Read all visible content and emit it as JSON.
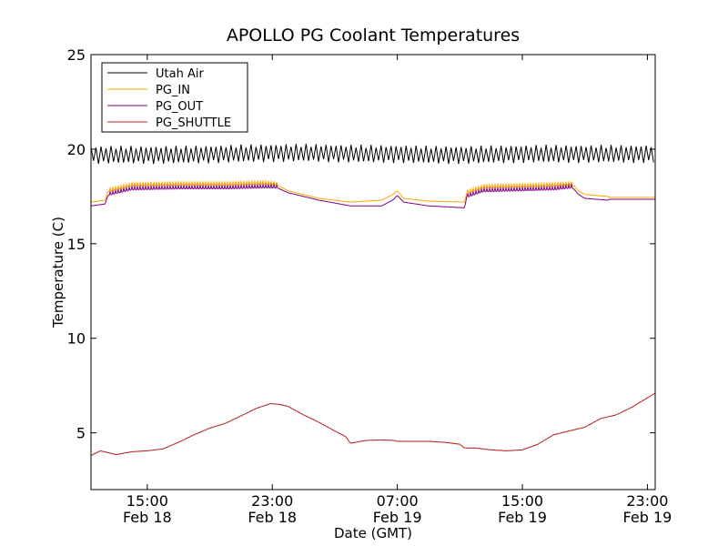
{
  "chart_data": {
    "type": "line",
    "title": "APOLLO PG Coolant Temperatures",
    "xlabel": "Date (GMT)",
    "ylabel": "Temperature (C)",
    "x_unit": "hours since 00:00 Feb 18 (GMT)",
    "xlim": [
      11.4,
      47.5
    ],
    "ylim": [
      2,
      25
    ],
    "yticks": [
      5,
      10,
      15,
      20,
      25
    ],
    "xticks": [
      {
        "x": 15,
        "time": "15:00",
        "date": "Feb 18"
      },
      {
        "x": 23,
        "time": "23:00",
        "date": "Feb 18"
      },
      {
        "x": 31,
        "time": "07:00",
        "date": "Feb 19"
      },
      {
        "x": 39,
        "time": "15:00",
        "date": "Feb 19"
      },
      {
        "x": 47,
        "time": "23:00",
        "date": "Feb 19"
      }
    ],
    "grid": false,
    "legend_position": "top-left",
    "series": [
      {
        "name": "Utah Air",
        "color": "#000000",
        "style": "oscillating",
        "oscillation_amplitude": 0.4,
        "oscillation_period_hours": 0.32,
        "x": [
          11.4,
          14,
          17,
          20,
          23,
          26,
          29,
          31,
          33,
          36,
          39,
          42,
          45,
          47.5
        ],
        "values": [
          19.7,
          19.7,
          19.7,
          19.75,
          19.8,
          19.8,
          19.75,
          19.75,
          19.7,
          19.7,
          19.75,
          19.75,
          19.75,
          19.75
        ]
      },
      {
        "name": "PG_IN",
        "color": "#ffa500",
        "x": [
          11.4,
          12.3,
          12.5,
          14,
          17,
          20,
          22.5,
          23.2,
          24,
          26,
          28,
          30,
          30.7,
          31,
          31.4,
          33,
          35.3,
          35.45,
          36.5,
          39,
          41,
          42.2,
          42.6,
          43,
          44.5,
          44.55,
          47.5
        ],
        "values": [
          17.2,
          17.3,
          17.8,
          18.1,
          18.15,
          18.15,
          18.2,
          18.15,
          17.8,
          17.4,
          17.2,
          17.3,
          17.6,
          17.8,
          17.4,
          17.25,
          17.2,
          17.7,
          18.0,
          18.05,
          18.1,
          18.15,
          17.8,
          17.6,
          17.5,
          17.45,
          17.45
        ]
      },
      {
        "name": "PG_OUT",
        "color": "#800080",
        "x": [
          11.4,
          12.3,
          12.5,
          14,
          17,
          20,
          22.5,
          23.2,
          24,
          26,
          28,
          30,
          30.7,
          31,
          31.4,
          33,
          35.3,
          35.45,
          36.5,
          39,
          41,
          42.2,
          42.6,
          43,
          44.5,
          44.55,
          47.5
        ],
        "values": [
          17.0,
          17.1,
          17.6,
          17.9,
          17.95,
          17.95,
          18.0,
          18.0,
          17.7,
          17.3,
          17.0,
          17.0,
          17.3,
          17.55,
          17.2,
          17.0,
          16.9,
          17.5,
          17.8,
          17.85,
          17.9,
          18.0,
          17.6,
          17.4,
          17.3,
          17.35,
          17.35
        ]
      },
      {
        "name": "PG_SHUTTLE",
        "color": "#b22222",
        "x": [
          11.4,
          12.0,
          13.0,
          14.0,
          15.0,
          16.0,
          17.0,
          18.0,
          19.0,
          20.0,
          21.0,
          22.0,
          22.9,
          23.5,
          24.0,
          25.0,
          26.0,
          27.0,
          27.7,
          28.0,
          29.0,
          30.0,
          30.8,
          31.0,
          32.0,
          33.0,
          34.0,
          35.0,
          35.3,
          35.5,
          36.0,
          37.0,
          38.0,
          39.0,
          40.0,
          41.0,
          42.0,
          43.0,
          44.0,
          45.0,
          46.0,
          47.5
        ],
        "values": [
          3.8,
          4.05,
          3.85,
          4.0,
          4.05,
          4.15,
          4.5,
          4.9,
          5.25,
          5.5,
          5.9,
          6.3,
          6.55,
          6.5,
          6.4,
          5.95,
          5.55,
          5.1,
          4.8,
          4.45,
          4.6,
          4.62,
          4.6,
          4.55,
          4.55,
          4.55,
          4.5,
          4.4,
          4.2,
          4.2,
          4.2,
          4.1,
          4.05,
          4.1,
          4.4,
          4.9,
          5.1,
          5.3,
          5.75,
          5.95,
          6.35,
          7.1
        ]
      }
    ]
  }
}
